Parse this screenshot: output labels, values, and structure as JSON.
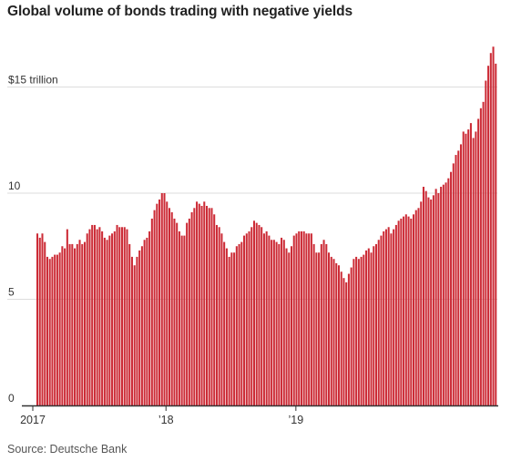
{
  "title": "Global volume of bonds trading with negative yields",
  "source": "Source: Deutsche Bank",
  "colors": {
    "bar": "#cc2b36",
    "grid": "#dddddd",
    "axis": "#333333",
    "text": "#333333"
  },
  "chart_data": {
    "type": "bar",
    "title": "Global volume of bonds trading with negative yields",
    "ylim": [
      0,
      17
    ],
    "y_ticks": [
      {
        "value": 15,
        "label": "$15 trillion"
      },
      {
        "value": 10,
        "label": "10"
      },
      {
        "value": 5,
        "label": "5"
      },
      {
        "value": 0,
        "label": "0"
      }
    ],
    "x_ticks": [
      {
        "x": "2017-01-02",
        "label": "2017"
      },
      {
        "x": "2018-01-01",
        "label": "’18"
      },
      {
        "x": "2019-01-01",
        "label": "’19"
      }
    ],
    "grid": true,
    "frequency": "weekly",
    "series": [
      {
        "values": [
          8.1,
          7.9,
          8.1,
          7.7,
          7.0,
          6.9,
          7.0,
          7.1,
          7.1,
          7.2,
          7.5,
          7.4,
          8.3,
          7.6,
          7.6,
          7.4,
          7.6,
          7.8,
          7.6,
          7.7,
          8.1,
          8.3,
          8.5,
          8.5,
          8.3,
          8.4,
          8.2,
          7.9,
          7.8,
          8.0,
          8.1,
          8.2,
          8.5,
          8.4,
          8.4,
          8.4,
          8.3,
          7.6,
          7.0,
          6.6,
          7.0,
          7.3,
          7.5,
          7.8,
          7.9,
          8.2,
          8.8,
          9.2,
          9.5,
          9.7,
          10.0,
          10.0,
          9.6,
          9.3,
          9.1,
          8.8,
          8.6,
          8.2,
          8.0,
          8.0,
          8.6,
          8.8,
          9.1,
          9.3,
          9.6,
          9.5,
          9.4,
          9.6,
          9.4,
          9.3,
          9.3,
          9.0,
          8.5,
          8.4,
          8.1,
          7.7,
          7.4,
          7.0,
          7.2,
          7.2,
          7.5,
          7.6,
          7.7,
          8.0,
          8.1,
          8.2,
          8.4,
          8.7,
          8.6,
          8.5,
          8.4,
          8.1,
          8.2,
          8.0,
          7.8,
          7.8,
          7.7,
          7.6,
          7.9,
          7.8,
          7.4,
          7.2,
          7.5,
          8.0,
          8.1,
          8.2,
          8.2,
          8.2,
          8.1,
          8.1,
          8.1,
          7.6,
          7.2,
          7.2,
          7.6,
          7.8,
          7.6,
          7.2,
          7.0,
          6.9,
          6.7,
          6.6,
          6.3,
          6.0,
          5.8,
          6.2,
          6.5,
          6.9,
          7.0,
          6.9,
          7.0,
          7.1,
          7.3,
          7.4,
          7.2,
          7.5,
          7.6,
          7.8,
          8.0,
          8.2,
          8.3,
          8.4,
          8.1,
          8.3,
          8.5,
          8.7,
          8.8,
          8.9,
          9.0,
          8.9,
          8.8,
          9.0,
          9.2,
          9.3,
          9.6,
          10.3,
          10.1,
          9.8,
          9.7,
          9.9,
          10.2,
          10.0,
          10.3,
          10.4,
          10.5,
          10.7,
          11.0,
          11.4,
          11.8,
          12.0,
          12.3,
          12.9,
          12.8,
          13.0,
          13.3,
          12.6,
          12.9,
          13.5,
          14.0,
          14.3,
          15.3,
          16.0,
          16.6,
          16.9,
          16.1
        ]
      }
    ]
  }
}
